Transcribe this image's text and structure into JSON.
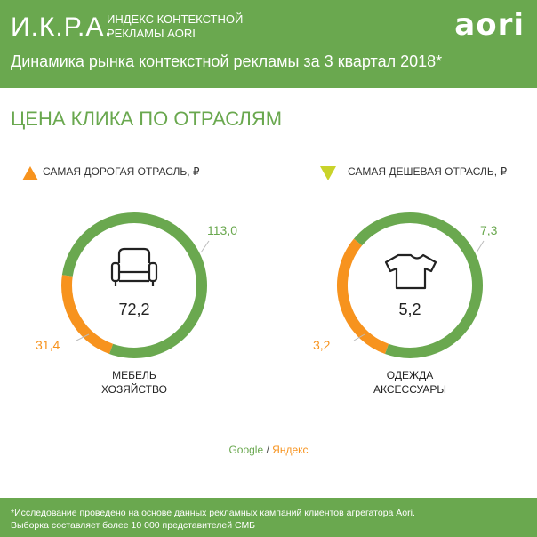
{
  "header": {
    "brand": "И.К.Р.А.",
    "brand_sub_1": "ИНДЕКС КОНТЕКСТНОЙ",
    "brand_sub_2": "РЕКЛАМЫ AORI",
    "logo": "aori",
    "subtitle": "Динамика рынка контекстной рекламы за 3 квартал 2018*"
  },
  "section_title": "ЦЕНА КЛИКА ПО ОТРАСЛЯМ",
  "source": {
    "google": "Google",
    "sep": " / ",
    "yandex": "Яндекс"
  },
  "footer": {
    "line1": "*Исследование проведено на основе данных рекламных кампаний клиентов агрегатора Aori.",
    "line2": "Выборка составляет более 10 000 представителей СМБ"
  },
  "colors": {
    "google": "#6aa84f",
    "yandex": "#f7931e",
    "expensive_marker": "#f7931e",
    "cheap_marker": "#c9d32a"
  },
  "chart_data": [
    {
      "type": "pie",
      "title": "САМАЯ ДОРОГАЯ ОТРАСЛЬ, ₽",
      "center_value": "72,2",
      "category": [
        "МЕБЕЛЬ",
        "ХОЗЯЙСТВО"
      ],
      "icon": "armchair-icon",
      "series": [
        {
          "name": "Google",
          "value": 113.0,
          "label": "113,0"
        },
        {
          "name": "Яндекс",
          "value": 31.4,
          "label": "31,4"
        }
      ]
    },
    {
      "type": "pie",
      "title": "САМАЯ ДЕШЕВАЯ ОТРАСЛЬ, ₽",
      "center_value": "5,2",
      "category": [
        "ОДЕЖДА",
        "АКСЕССУАРЫ"
      ],
      "icon": "tshirt-icon",
      "series": [
        {
          "name": "Google",
          "value": 7.3,
          "label": "7,3"
        },
        {
          "name": "Яндекс",
          "value": 3.2,
          "label": "3,2"
        }
      ]
    }
  ]
}
